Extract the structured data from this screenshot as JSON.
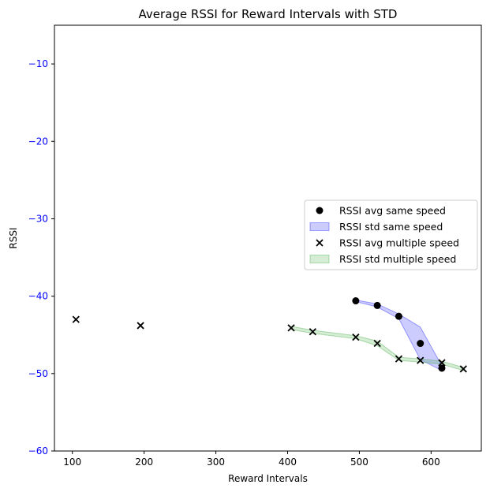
{
  "chart_data": {
    "type": "scatter",
    "title": "Average RSSI for Reward Intervals with STD",
    "xlabel": "Reward Intervals",
    "ylabel": "RSSI",
    "xlim": [
      75,
      670
    ],
    "ylim": [
      -60,
      -5
    ],
    "xticks": [
      100,
      200,
      300,
      400,
      500,
      600
    ],
    "yticks": [
      -60,
      -50,
      -40,
      -30,
      -20,
      -10
    ],
    "xtick_labels": [
      "100",
      "200",
      "300",
      "400",
      "500",
      "600"
    ],
    "ytick_labels": [
      "−60",
      "−50",
      "−40",
      "−30",
      "−20",
      "−10"
    ],
    "ytick_color": "#0000ff",
    "grid": false,
    "legend_position": "center-right",
    "series": [
      {
        "name": "RSSI avg same speed",
        "marker": "circle",
        "color": "#000000",
        "x": [
          495,
          525,
          555,
          585,
          615
        ],
        "y": [
          -40.6,
          -41.2,
          -42.6,
          -46.1,
          -49.3
        ]
      },
      {
        "name": "RSSI std same speed",
        "kind": "band",
        "color": "#0000ff",
        "x": [
          495,
          525,
          555,
          585,
          615
        ],
        "upper": [
          -40.5,
          -41.0,
          -42.3,
          -44.0,
          -49.0
        ],
        "lower": [
          -40.7,
          -41.4,
          -42.9,
          -48.2,
          -49.6
        ]
      },
      {
        "name": "RSSI avg multiple speed",
        "marker": "x",
        "color": "#000000",
        "x": [
          105,
          195,
          405,
          435,
          495,
          525,
          555,
          585,
          615,
          645
        ],
        "y": [
          -43.0,
          -43.8,
          -44.1,
          -44.6,
          -45.3,
          -46.1,
          -48.1,
          -48.3,
          -48.6,
          -49.4
        ]
      },
      {
        "name": "RSSI std multiple speed",
        "kind": "band",
        "color": "#2ca02c",
        "x": [
          405,
          435,
          495,
          525,
          555,
          585,
          615,
          645
        ],
        "upper": [
          -43.9,
          -44.4,
          -45.1,
          -45.8,
          -47.9,
          -48.1,
          -48.4,
          -49.2
        ],
        "lower": [
          -44.3,
          -44.8,
          -45.5,
          -46.4,
          -48.3,
          -48.5,
          -48.8,
          -49.6
        ]
      }
    ]
  }
}
